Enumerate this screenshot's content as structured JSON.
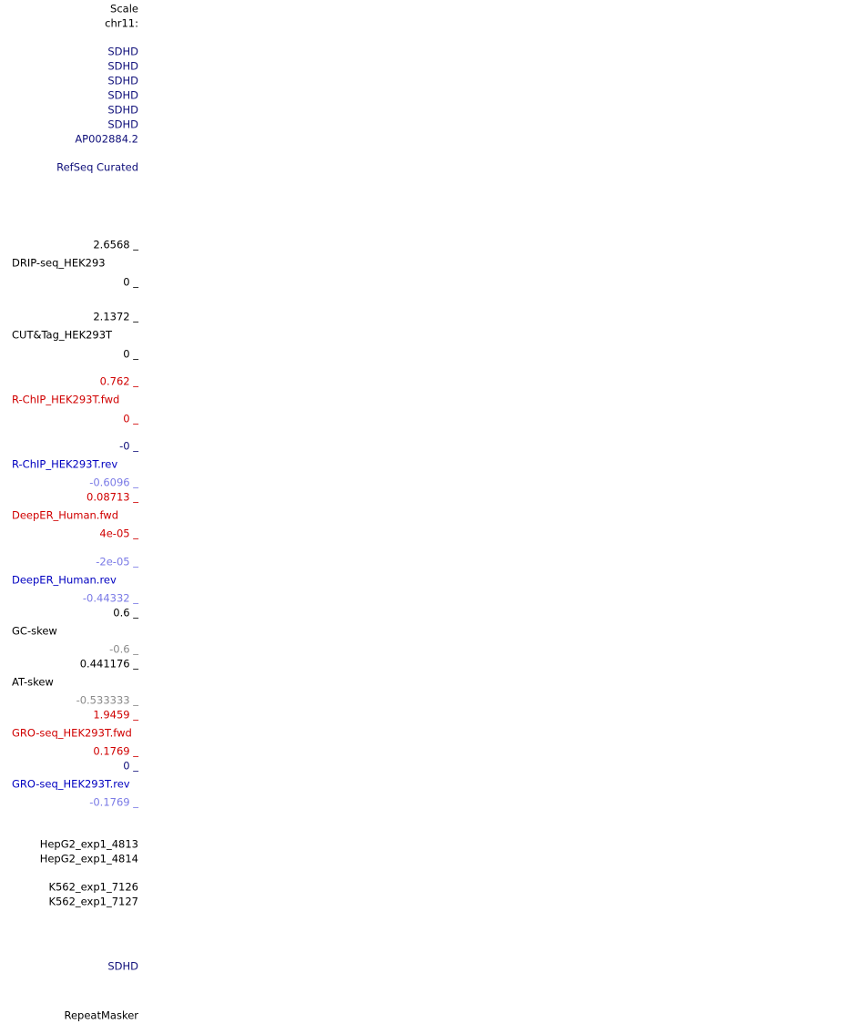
{
  "labels": [
    "Scale",
    "chr11:",
    "SDHD",
    "SDHD",
    "SDHD",
    "SDHD",
    "SDHD",
    "SDHD",
    "AP002884.2",
    "RefSeq Curated",
    "2.6568 _",
    "DRIP-seq_HEK293",
    "0 _",
    "2.1372 _",
    "CUT&Tag_HEK293T",
    "0 _",
    "0.762 _",
    "R-ChIP_HEK293T.fwd",
    "0 _",
    "-0 _",
    "R-ChIP_HEK293T.rev",
    "-0.6096 _",
    "0.08713 _",
    "DeepER_Human.fwd",
    "4e-05 _",
    "-2e-05 _",
    "DeepER_Human.rev",
    "-0.44332 _",
    "0.6 _",
    "GC-skew",
    "-0.6 _",
    "0.441176 _",
    "AT-skew",
    "-0.533333 _",
    "1.9459 _",
    "GRO-seq_HEK293T.fwd",
    "0.1769 _",
    "0 _",
    "GRO-seq_HEK293T.rev",
    "-0.1769 _",
    "HepG2_exp1_4813",
    "HepG2_exp1_4814",
    "K562_exp1_7126",
    "K562_exp1_7127",
    "SDHD",
    "RepeatMasker"
  ]
}
